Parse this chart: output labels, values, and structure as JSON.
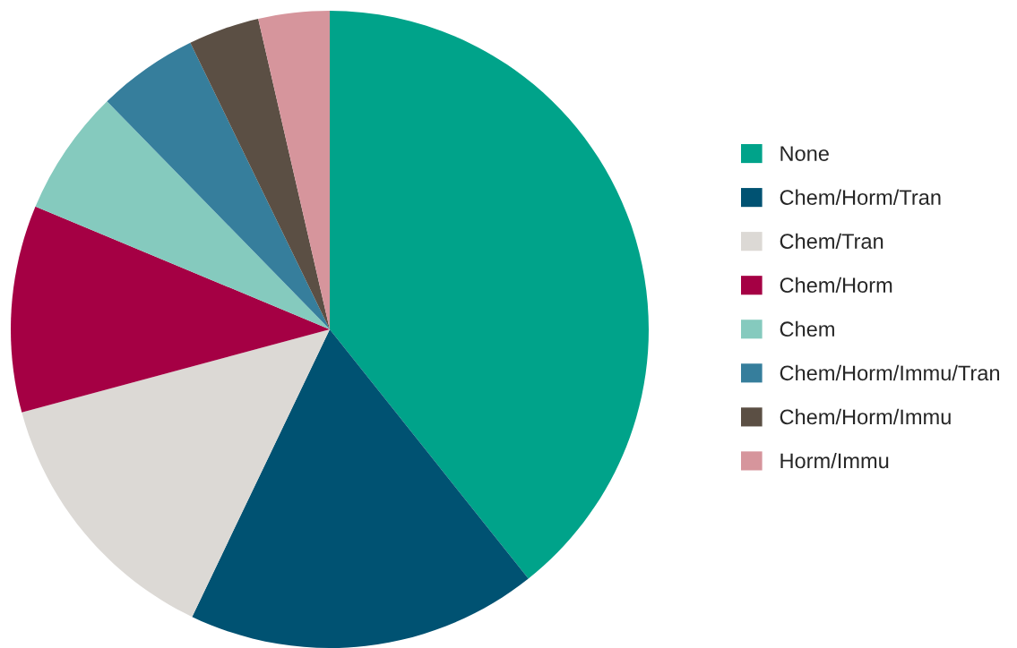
{
  "chart_data": {
    "type": "pie",
    "categories": [
      "None",
      "Chem/Horm/Tran",
      "Chem/Tran",
      "Chem/Horm",
      "Chem",
      "Chem/Horm/Immu/Tran",
      "Chem/Horm/Immu",
      "Horm/Immu"
    ],
    "values": [
      39.3,
      17.8,
      13.7,
      10.5,
      6.4,
      5.1,
      3.6,
      3.6
    ],
    "colors": [
      "#00a38a",
      "#005272",
      "#dcd9d5",
      "#a50044",
      "#85cabe",
      "#367e9c",
      "#5b4f44",
      "#d6959c"
    ],
    "legend": "right"
  }
}
